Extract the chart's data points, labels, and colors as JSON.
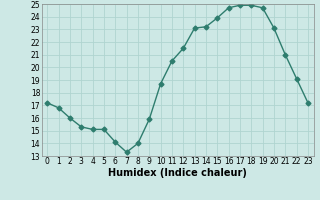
{
  "x": [
    0,
    1,
    2,
    3,
    4,
    5,
    6,
    7,
    8,
    9,
    10,
    11,
    12,
    13,
    14,
    15,
    16,
    17,
    18,
    19,
    20,
    21,
    22,
    23
  ],
  "y": [
    17.2,
    16.8,
    16.0,
    15.3,
    15.1,
    15.1,
    14.1,
    13.3,
    14.0,
    15.9,
    18.7,
    20.5,
    21.5,
    23.1,
    23.2,
    23.9,
    24.7,
    24.9,
    24.9,
    24.7,
    23.1,
    21.0,
    19.1,
    17.2
  ],
  "xlabel": "Humidex (Indice chaleur)",
  "ylim": [
    13,
    25
  ],
  "xlim_left": -0.5,
  "xlim_right": 23.5,
  "yticks": [
    13,
    14,
    15,
    16,
    17,
    18,
    19,
    20,
    21,
    22,
    23,
    24,
    25
  ],
  "xticks": [
    0,
    1,
    2,
    3,
    4,
    5,
    6,
    7,
    8,
    9,
    10,
    11,
    12,
    13,
    14,
    15,
    16,
    17,
    18,
    19,
    20,
    21,
    22,
    23
  ],
  "line_color": "#2e7d6e",
  "marker": "D",
  "marker_size": 2.5,
  "bg_color": "#cde8e5",
  "grid_color": "#b0d4d0",
  "tick_fontsize": 5.5,
  "xlabel_fontsize": 7.0,
  "line_width": 1.0
}
